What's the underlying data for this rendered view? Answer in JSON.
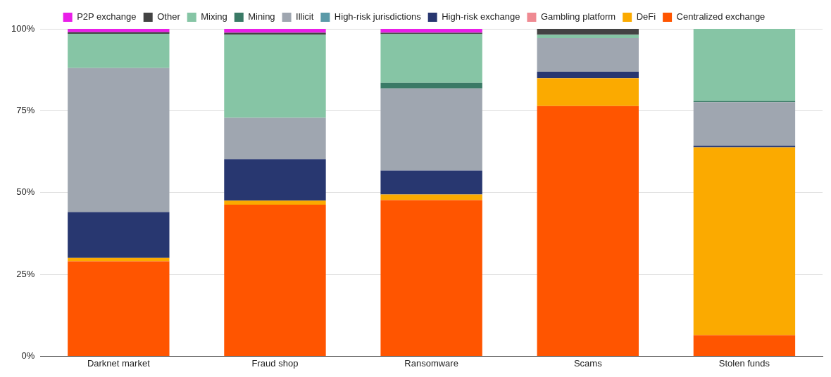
{
  "chart_data": {
    "type": "bar",
    "stacked": true,
    "legend": "top",
    "grid": "y",
    "categories": [
      "Darknet market",
      "Fraud shop",
      "Ransomware",
      "Scams",
      "Stolen funds"
    ],
    "ylim": [
      0,
      100
    ],
    "yticks": [
      {
        "value": 0,
        "label": "0%"
      },
      {
        "value": 25,
        "label": "25%"
      },
      {
        "value": 50,
        "label": "50%"
      },
      {
        "value": 75,
        "label": "75%"
      },
      {
        "value": 100,
        "label": "100%"
      }
    ],
    "series": [
      {
        "name": "Centralized exchange",
        "color": "#ff5500",
        "values": [
          29,
          46.3,
          47.7,
          76.4,
          6.4
        ]
      },
      {
        "name": "DeFi",
        "color": "#fbaa00",
        "values": [
          1,
          1.2,
          1.7,
          8.5,
          57.4
        ]
      },
      {
        "name": "Gambling platform",
        "color": "#ef8a92",
        "values": [
          0,
          0,
          0,
          0,
          0
        ]
      },
      {
        "name": "High-risk exchange",
        "color": "#283770",
        "values": [
          14,
          12.7,
          7.3,
          2,
          0.5
        ]
      },
      {
        "name": "High-risk jurisdictions",
        "color": "#5b9aa8",
        "values": [
          0,
          0,
          0,
          0,
          0
        ]
      },
      {
        "name": "Illicit",
        "color": "#9fa6b0",
        "values": [
          44,
          12.6,
          25.1,
          10.3,
          13.3
        ]
      },
      {
        "name": "Mining",
        "color": "#3a7a66",
        "values": [
          0,
          0,
          1.7,
          0,
          0.4
        ]
      },
      {
        "name": "Mixing",
        "color": "#86c5a5",
        "values": [
          10.5,
          25.4,
          14.9,
          1,
          22
        ]
      },
      {
        "name": "Other",
        "color": "#434343",
        "values": [
          0.5,
          0.6,
          0.4,
          1.8,
          0
        ]
      },
      {
        "name": "P2P exchange",
        "color": "#e91ee8",
        "values": [
          1,
          1.2,
          1.2,
          0,
          0
        ]
      }
    ]
  }
}
